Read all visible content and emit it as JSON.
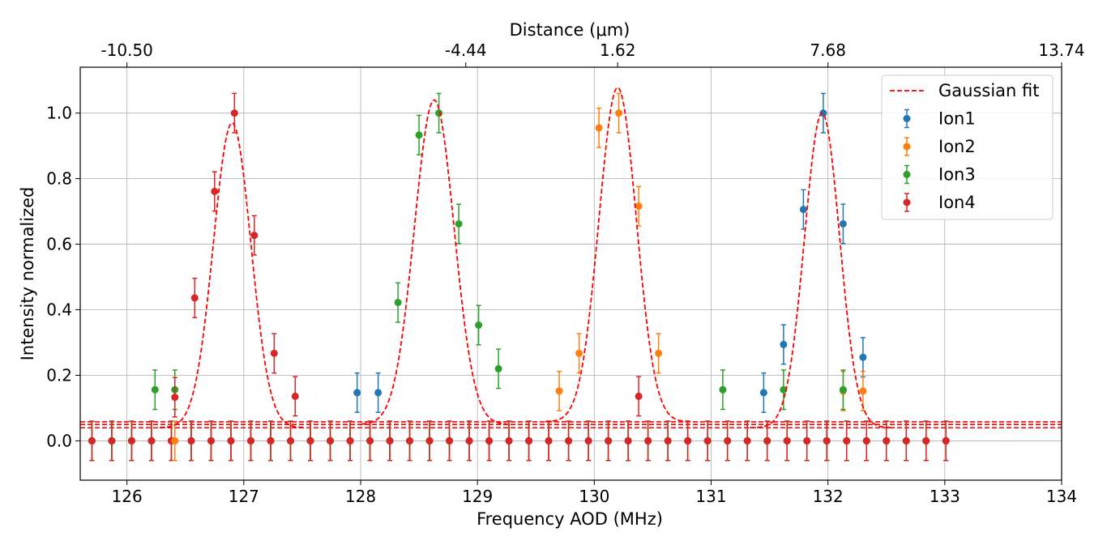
{
  "chart_data": {
    "type": "scatter",
    "xlabel": "Frequency AOD (MHz)",
    "ylabel": "Intensity normalized",
    "top_xlabel": "Distance (μm)",
    "xlim": [
      125.6,
      134.0
    ],
    "ylim": [
      -0.12,
      1.14
    ],
    "xticks": [
      126,
      127,
      128,
      129,
      130,
      131,
      132,
      133,
      134
    ],
    "xtick_labels": [
      "126",
      "127",
      "128",
      "129",
      "130",
      "131",
      "132",
      "133",
      "134"
    ],
    "yticks": [
      0.0,
      0.2,
      0.4,
      0.6,
      0.8,
      1.0
    ],
    "ytick_labels": [
      "0.0",
      "0.2",
      "0.4",
      "0.6",
      "0.8",
      "1.0"
    ],
    "top_xticks": [
      126.0,
      128.9,
      130.2,
      132.0,
      134.0
    ],
    "top_xtick_labels": [
      "-10.50",
      "-4.44",
      "1.62",
      "7.68",
      "13.74"
    ],
    "grid": true,
    "legend_position": "top-right",
    "error_bar": 0.06,
    "colors": {
      "Ion1": "#1f77b4",
      "Ion2": "#ff7f0e",
      "Ion3": "#2ca02c",
      "Ion4": "#d62728",
      "fit": "#ff0000"
    },
    "series": [
      {
        "name": "Ion1",
        "x": [
          127.97,
          128.15,
          131.45,
          131.62,
          131.79,
          131.96,
          132.13,
          132.3
        ],
        "y": [
          0.147,
          0.147,
          0.147,
          0.294,
          0.706,
          1.0,
          0.662,
          0.255
        ]
      },
      {
        "name": "Ion2",
        "x": [
          126.41,
          129.7,
          129.87,
          130.04,
          130.21,
          130.38,
          130.55,
          132.13,
          132.3
        ],
        "y": [
          0.0,
          0.152,
          0.267,
          0.955,
          1.0,
          0.716,
          0.267,
          0.152,
          0.152
        ]
      },
      {
        "name": "Ion3",
        "x": [
          126.24,
          126.41,
          128.32,
          128.5,
          128.67,
          128.84,
          129.01,
          129.18,
          131.1,
          131.62,
          132.13
        ],
        "y": [
          0.156,
          0.156,
          0.422,
          0.933,
          1.0,
          0.662,
          0.353,
          0.22,
          0.156,
          0.156,
          0.156
        ]
      },
      {
        "name": "Ion4",
        "x": [
          126.41,
          126.58,
          126.75,
          126.92,
          127.09,
          127.26,
          127.44,
          130.38
        ],
        "y": [
          0.133,
          0.436,
          0.761,
          1.0,
          0.627,
          0.267,
          0.136,
          0.136
        ]
      }
    ],
    "zero_series": {
      "x": [
        125.7,
        125.87,
        126.04,
        126.21,
        126.38,
        126.55,
        126.72,
        126.89,
        127.06,
        127.23,
        127.4,
        127.57,
        127.74,
        127.91,
        128.08,
        128.25,
        128.42,
        128.59,
        128.76,
        128.93,
        129.1,
        129.27,
        129.44,
        129.61,
        129.78,
        129.95,
        130.12,
        130.29,
        130.46,
        130.63,
        130.8,
        130.97,
        131.14,
        131.31,
        131.48,
        131.65,
        131.82,
        131.99,
        132.16,
        132.33,
        132.5,
        132.67,
        132.84,
        133.01
      ],
      "y": 0.0
    },
    "fits": [
      {
        "name": "Gaussian fit",
        "center": 126.9,
        "amplitude": 0.93,
        "sigma": 0.16,
        "offset": 0.04
      },
      {
        "name": "Gaussian fit",
        "center": 128.63,
        "amplitude": 0.99,
        "sigma": 0.17,
        "offset": 0.05
      },
      {
        "name": "Gaussian fit",
        "center": 130.2,
        "amplitude": 1.02,
        "sigma": 0.16,
        "offset": 0.058
      },
      {
        "name": "Gaussian fit",
        "center": 131.95,
        "amplitude": 0.96,
        "sigma": 0.15,
        "offset": 0.04
      }
    ],
    "legend": [
      "Gaussian fit",
      "Ion1",
      "Ion2",
      "Ion3",
      "Ion4"
    ]
  }
}
